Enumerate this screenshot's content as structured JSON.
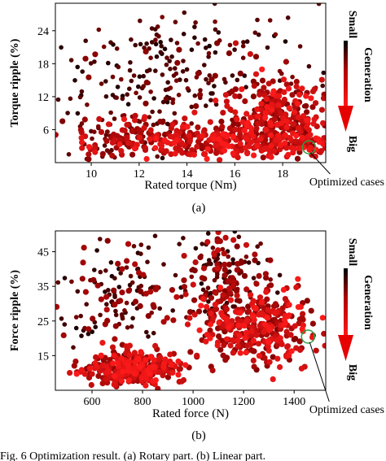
{
  "figure": {
    "caption": "Fig. 6   Optimization result. (a) Rotary part. (b) Linear part."
  },
  "colors": {
    "dark": "#1a0000",
    "mid": "#800000",
    "bright": "#ff1a1a",
    "arrow": "#e60000",
    "circle": "#2ea043"
  },
  "chart_data": [
    {
      "type": "scatter",
      "panel_label": "(a)",
      "xlabel": "Rated torque (Nm)",
      "ylabel": "Torque ripple (%)",
      "xlim": [
        8.5,
        19.8
      ],
      "ylim": [
        0,
        29
      ],
      "xticks": [
        10,
        12,
        14,
        16,
        18
      ],
      "yticks": [
        6,
        12,
        18,
        24
      ],
      "grid": false,
      "legend": "colorbar arrow on right, Small (top) to Big (bottom)",
      "colorbar": {
        "top_label": "Small",
        "middle_label": "Generation",
        "bottom_label": "Big"
      },
      "annotation": {
        "text": "Optimized cases",
        "point": [
          19.1,
          2.8
        ]
      },
      "clusters": [
        {
          "cx": 13.5,
          "cy": 17,
          "sx": 2.6,
          "sy": 6,
          "n": 230,
          "gen": [
            0.0,
            0.55
          ]
        },
        {
          "cx": 15.5,
          "cy": 4,
          "sx": 2.6,
          "sy": 1.7,
          "n": 380,
          "gen": [
            0.55,
            1.0
          ]
        },
        {
          "cx": 17.8,
          "cy": 9,
          "sx": 1.1,
          "sy": 3.4,
          "n": 260,
          "gen": [
            0.45,
            1.0
          ]
        },
        {
          "cx": 11.0,
          "cy": 5,
          "sx": 1.2,
          "sy": 2.2,
          "n": 90,
          "gen": [
            0.25,
            0.8
          ]
        }
      ]
    },
    {
      "type": "scatter",
      "panel_label": "(b)",
      "xlabel": "Rated force (N)",
      "ylabel": "Force ripple (%)",
      "xlim": [
        455,
        1525
      ],
      "ylim": [
        5,
        51
      ],
      "xticks": [
        600,
        800,
        1000,
        1200,
        1400
      ],
      "yticks": [
        15,
        25,
        35,
        45
      ],
      "grid": false,
      "legend": "colorbar arrow on right, Small (top) to Big (bottom)",
      "colorbar": {
        "top_label": "Small",
        "middle_label": "Generation",
        "bottom_label": "Big"
      },
      "annotation": {
        "text": "Optimized cases",
        "point": [
          1455,
          20.5
        ]
      },
      "clusters": [
        {
          "cx": 760,
          "cy": 11,
          "sx": 90,
          "sy": 2.6,
          "n": 330,
          "gen": [
            0.55,
            1.0
          ]
        },
        {
          "cx": 1250,
          "cy": 23,
          "sx": 120,
          "sy": 5.5,
          "n": 340,
          "gen": [
            0.5,
            1.0
          ]
        },
        {
          "cx": 700,
          "cy": 33,
          "sx": 130,
          "sy": 8.5,
          "n": 150,
          "gen": [
            0.0,
            0.7
          ]
        },
        {
          "cx": 1120,
          "cy": 37,
          "sx": 90,
          "sy": 7.5,
          "n": 190,
          "gen": [
            0.0,
            0.8
          ]
        }
      ]
    }
  ]
}
